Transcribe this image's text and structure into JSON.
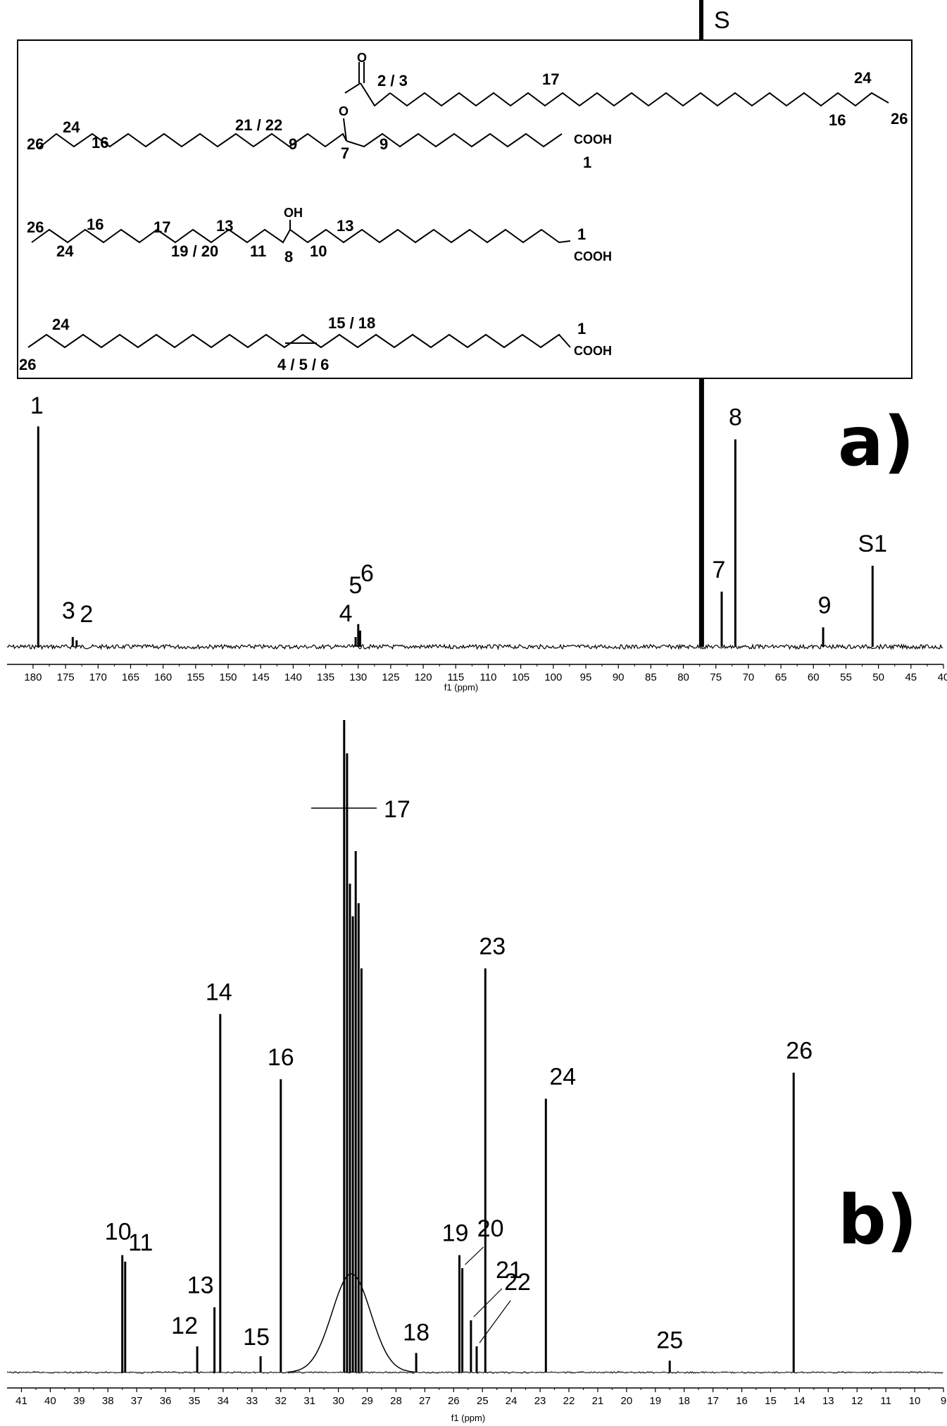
{
  "structures": {
    "solvent_label": "S",
    "mol1": {
      "carbonyl_o": "O",
      "ester_o": "O",
      "cooh": "COOH",
      "labels": [
        "2 / 3",
        "17",
        "24",
        "16",
        "26",
        "24",
        "21 / 22",
        "26",
        "16",
        "9",
        "7",
        "9",
        "1"
      ]
    },
    "mol2": {
      "oh": "OH",
      "cooh": "COOH",
      "labels": [
        "26",
        "16",
        "17",
        "13",
        "13",
        "1",
        "24",
        "19 / 20",
        "11",
        "8",
        "10"
      ]
    },
    "mol3": {
      "cooh": "COOH",
      "labels": [
        "24",
        "15 / 18",
        "1",
        "26",
        "4 / 5 / 6"
      ]
    }
  },
  "chart_data": [
    {
      "type": "line",
      "panel_label": "a)",
      "xlabel": "f1 (ppm)",
      "xlim": [
        184,
        40
      ],
      "x_reversed": true,
      "ticks": [
        180,
        175,
        170,
        165,
        160,
        155,
        150,
        145,
        140,
        135,
        130,
        125,
        120,
        115,
        110,
        105,
        100,
        95,
        90,
        85,
        80,
        75,
        70,
        65,
        60,
        55,
        50,
        45,
        40
      ],
      "grid": false,
      "peaks": [
        {
          "x": 179.2,
          "h": 0.68,
          "label": "1"
        },
        {
          "x": 173.9,
          "h": 0.03,
          "label": "3"
        },
        {
          "x": 173.3,
          "h": 0.02,
          "label": "2"
        },
        {
          "x": 130.4,
          "h": 0.03,
          "label": "4"
        },
        {
          "x": 130.0,
          "h": 0.07,
          "label": "5"
        },
        {
          "x": 129.7,
          "h": 0.05,
          "label": "6"
        },
        {
          "x": 77.2,
          "h": 1.0,
          "label": "S"
        },
        {
          "x": 74.1,
          "h": 0.17,
          "label": "7"
        },
        {
          "x": 72.0,
          "h": 0.64,
          "label": "8"
        },
        {
          "x": 58.5,
          "h": 0.06,
          "label": "9"
        },
        {
          "x": 50.9,
          "h": 0.25,
          "label": "S1"
        }
      ]
    },
    {
      "type": "line",
      "panel_label": "b)",
      "xlabel": "f1 (ppm)",
      "xlim": [
        41.5,
        9
      ],
      "x_reversed": true,
      "ticks": [
        41,
        40,
        39,
        38,
        37,
        36,
        35,
        34,
        33,
        32,
        31,
        30,
        29,
        28,
        27,
        26,
        25,
        24,
        23,
        22,
        21,
        20,
        19,
        18,
        17,
        16,
        15,
        14,
        13,
        12,
        11,
        10,
        9
      ],
      "grid": false,
      "peak_label_17": "17",
      "peaks": [
        {
          "x": 37.5,
          "h": 0.18,
          "label": "10"
        },
        {
          "x": 37.4,
          "h": 0.17,
          "label": "11"
        },
        {
          "x": 34.9,
          "h": 0.04,
          "label": "12"
        },
        {
          "x": 34.3,
          "h": 0.1,
          "label": "13"
        },
        {
          "x": 34.1,
          "h": 0.55,
          "label": "14"
        },
        {
          "x": 32.7,
          "h": 0.025,
          "label": "15"
        },
        {
          "x": 32.0,
          "h": 0.45,
          "label": "16"
        },
        {
          "x": 29.8,
          "h": 1.0,
          "label": ""
        },
        {
          "x": 29.7,
          "h": 0.95,
          "label": ""
        },
        {
          "x": 29.6,
          "h": 0.75,
          "label": ""
        },
        {
          "x": 29.5,
          "h": 0.7,
          "label": ""
        },
        {
          "x": 29.4,
          "h": 0.8,
          "label": ""
        },
        {
          "x": 29.3,
          "h": 0.72,
          "label": ""
        },
        {
          "x": 29.2,
          "h": 0.62,
          "label": ""
        },
        {
          "x": 27.3,
          "h": 0.03,
          "label": "18"
        },
        {
          "x": 25.8,
          "h": 0.18,
          "label": "19"
        },
        {
          "x": 25.7,
          "h": 0.16,
          "label": "20"
        },
        {
          "x": 25.4,
          "h": 0.08,
          "label": "21"
        },
        {
          "x": 25.2,
          "h": 0.04,
          "label": "22"
        },
        {
          "x": 24.9,
          "h": 0.62,
          "label": "23"
        },
        {
          "x": 22.8,
          "h": 0.42,
          "label": "24"
        },
        {
          "x": 18.5,
          "h": 0.018,
          "label": "25"
        },
        {
          "x": 14.2,
          "h": 0.46,
          "label": "26"
        }
      ]
    }
  ]
}
